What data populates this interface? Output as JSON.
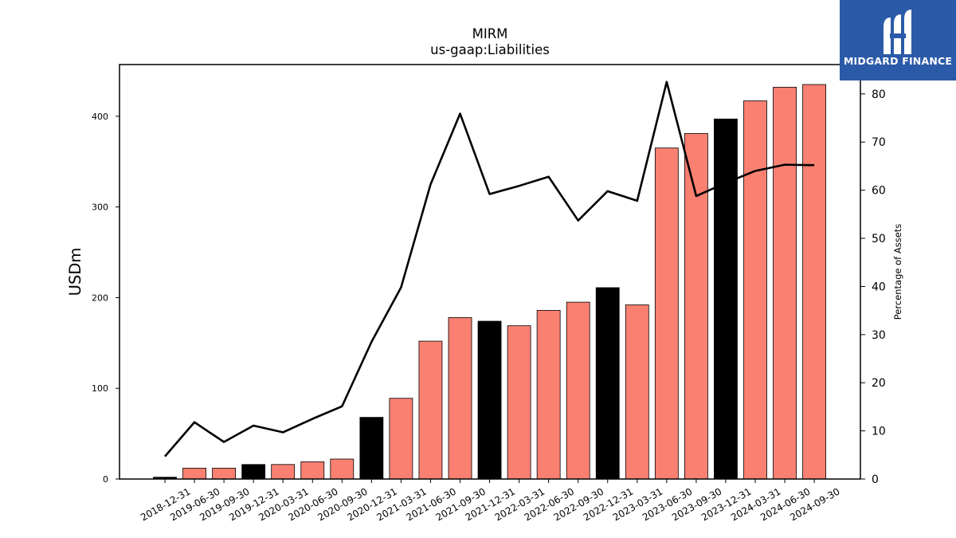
{
  "logo": {
    "text": "MIDGARD FINANCE"
  },
  "colors": {
    "quarter_bar": "#fa8072",
    "year_end_bar": "#000000",
    "line": "#000000"
  },
  "chart_data": {
    "type": "bar",
    "title": "MIRM",
    "subtitle": "us-gaap:Liabilities",
    "ylabel": "USDm",
    "y2label": "Percentage of Assets",
    "ylim": [
      0,
      457
    ],
    "y2lim": [
      0,
      86.1
    ],
    "yticks": [
      0,
      100,
      200,
      300,
      400
    ],
    "y2ticks": [
      0,
      10,
      20,
      30,
      40,
      50,
      60,
      70,
      80
    ],
    "categories": [
      "2018-12-31",
      "2019-06-30",
      "2019-09-30",
      "2019-12-31",
      "2020-03-31",
      "2020-06-30",
      "2020-09-30",
      "2020-12-31",
      "2021-03-31",
      "2021-06-30",
      "2021-09-30",
      "2021-12-31",
      "2022-03-31",
      "2022-06-30",
      "2022-09-30",
      "2022-12-31",
      "2023-03-31",
      "2023-06-30",
      "2023-09-30",
      "2023-12-31",
      "2024-03-31",
      "2024-06-30",
      "2024-09-30"
    ],
    "series": [
      {
        "type": "bar",
        "axis": "left",
        "values": [
          2,
          12,
          12,
          16,
          16,
          19,
          22,
          68,
          89,
          152,
          178,
          174,
          169,
          186,
          195,
          211,
          192,
          365,
          381,
          397,
          417,
          432,
          435
        ],
        "year_end": [
          true,
          false,
          false,
          true,
          false,
          false,
          false,
          true,
          false,
          false,
          false,
          true,
          false,
          false,
          false,
          true,
          false,
          false,
          false,
          true,
          false,
          false,
          false
        ]
      },
      {
        "type": "line",
        "axis": "right",
        "values": [
          4.7,
          11.8,
          7.7,
          11.1,
          9.7,
          12.5,
          15.1,
          28.5,
          39.8,
          61.2,
          75.9,
          59.2,
          60.9,
          62.8,
          53.7,
          59.8,
          57.8,
          82.5,
          58.8,
          61.5,
          64.0,
          65.3,
          65.2
        ]
      }
    ]
  }
}
